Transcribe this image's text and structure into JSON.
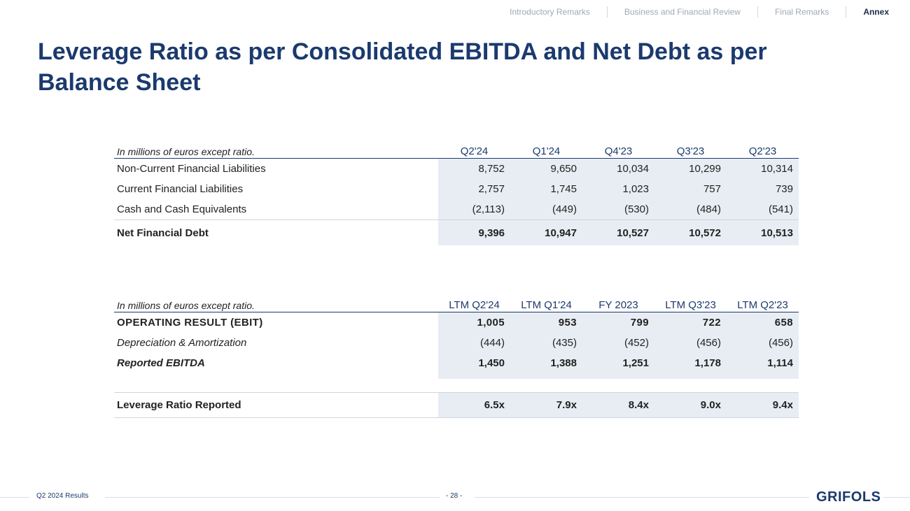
{
  "nav": {
    "items": [
      "Introductory Remarks",
      "Business and Financial Review",
      "Final Remarks",
      "Annex"
    ],
    "active": "Annex"
  },
  "title": "Leverage Ratio as per Consolidated EBITDA and Net Debt as per Balance Sheet",
  "table1": {
    "caption": "In millions of euros except ratio.",
    "columns": [
      "Q2'24",
      "Q1'24",
      "Q4'23",
      "Q3'23",
      "Q2'23"
    ],
    "rows": [
      {
        "label": "Non-Current Financial Liabilities",
        "values": [
          "8,752",
          "9,650",
          "10,034",
          "10,299",
          "10,314"
        ]
      },
      {
        "label": "Current Financial Liabilities",
        "values": [
          "2,757",
          "1,745",
          "1,023",
          "757",
          "739"
        ]
      },
      {
        "label": "Cash and Cash Equivalents",
        "values": [
          "(2,113)",
          "(449)",
          "(530)",
          "(484)",
          "(541)"
        ]
      },
      {
        "label": "Net Financial Debt",
        "values": [
          "9,396",
          "10,947",
          "10,527",
          "10,572",
          "10,513"
        ]
      }
    ]
  },
  "table2": {
    "caption": "In millions of euros except ratio.",
    "columns": [
      "LTM Q2'24",
      "LTM Q1'24",
      "FY 2023",
      "LTM Q3'23",
      "LTM Q2'23"
    ],
    "rows": [
      {
        "label": "OPERATING RESULT (EBIT)",
        "values": [
          "1,005",
          "953",
          "799",
          "722",
          "658"
        ]
      },
      {
        "label": "Depreciation & Amortization",
        "values": [
          "(444)",
          "(435)",
          "(452)",
          "(456)",
          "(456)"
        ]
      },
      {
        "label": "Reported EBITDA",
        "values": [
          "1,450",
          "1,388",
          "1,251",
          "1,178",
          "1,114"
        ]
      }
    ]
  },
  "table3": {
    "label": "Leverage Ratio Reported",
    "values": [
      "6.5x",
      "7.9x",
      "8.4x",
      "9.0x",
      "9.4x"
    ]
  },
  "footer": {
    "left": "Q2 2024 Results",
    "page": "- 28 -",
    "logo": "GRIFOLS"
  }
}
